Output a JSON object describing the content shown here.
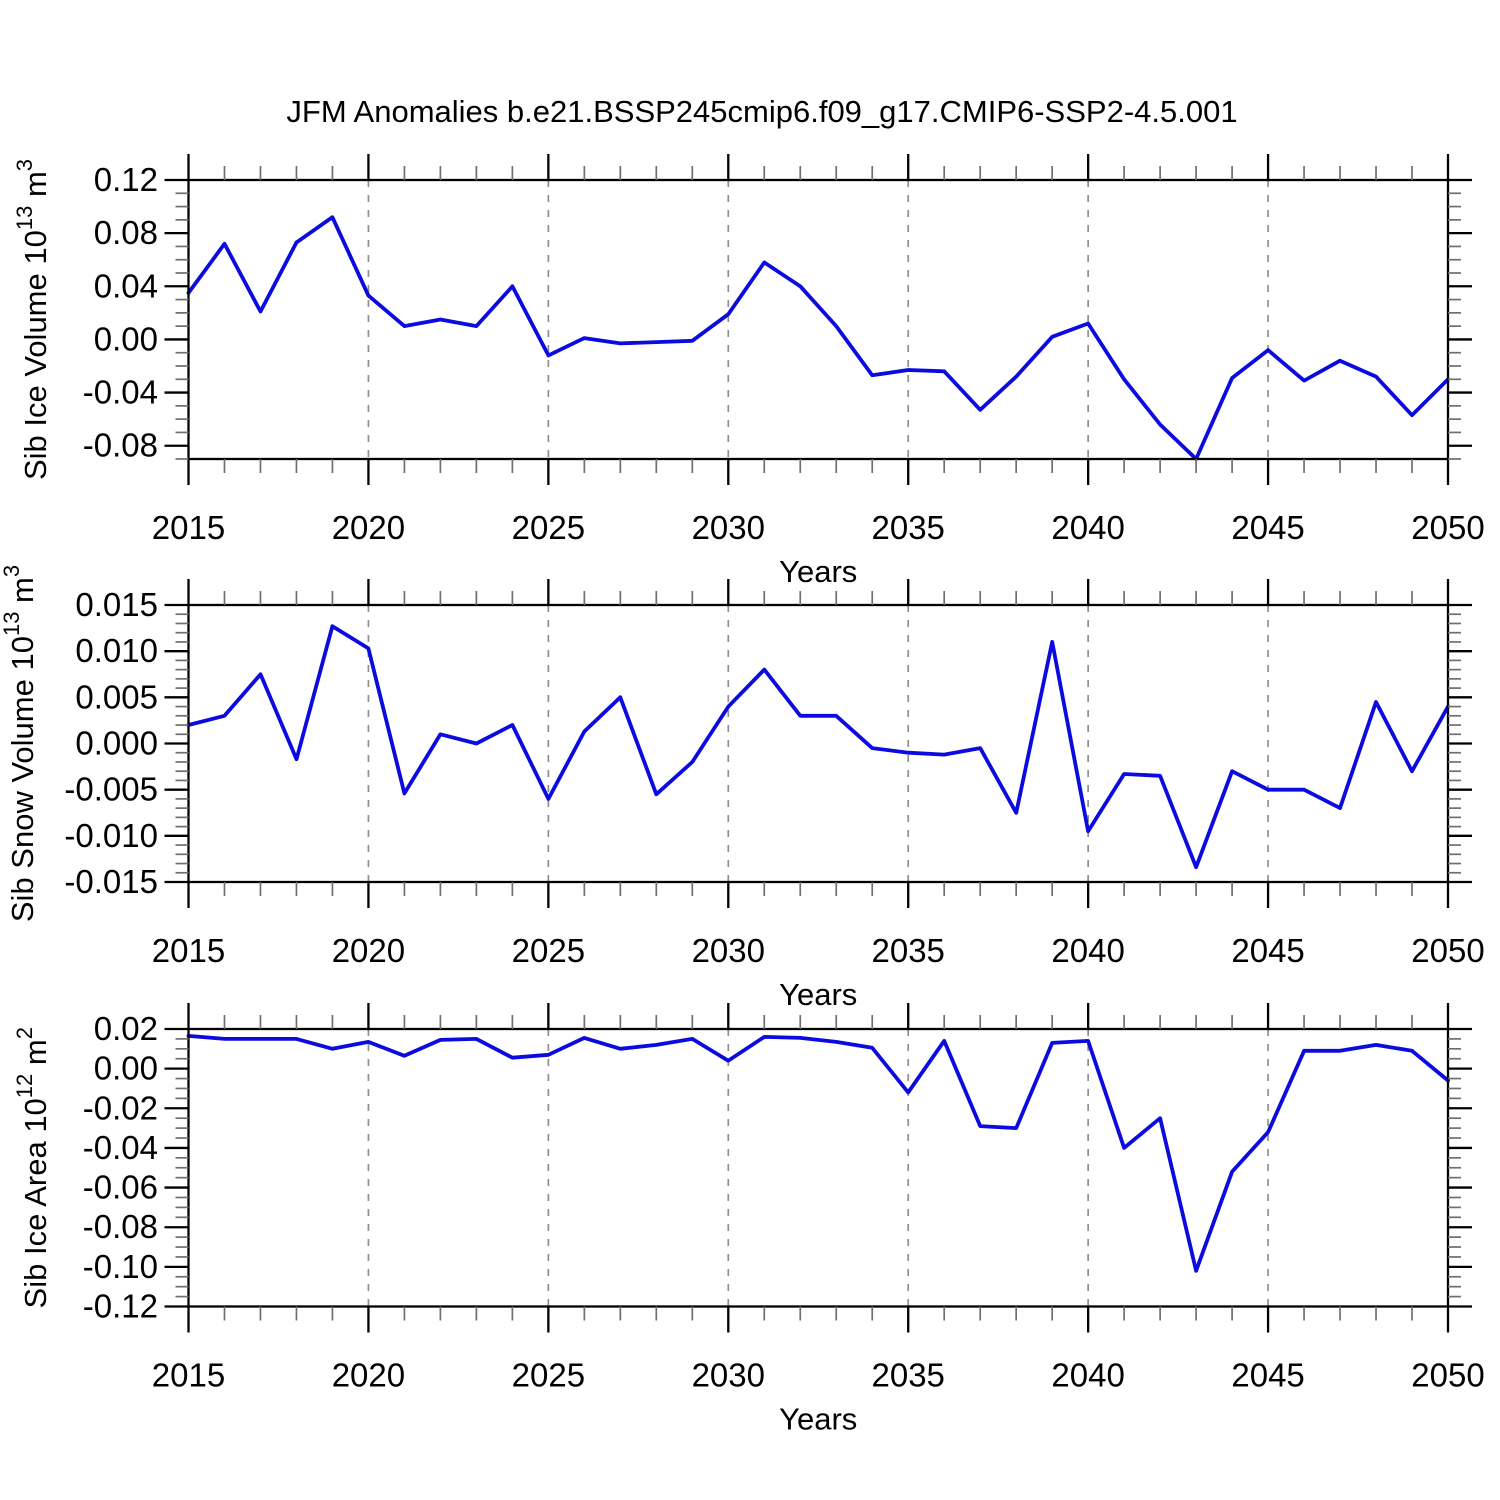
{
  "title": "JFM Anomalies b.e21.BSSP245cmip6.f09_g17.CMIP6-SSP2-4.5.001",
  "chart_data": {
    "type": "line",
    "x_label": "Years",
    "x": [
      2015,
      2016,
      2017,
      2018,
      2019,
      2020,
      2021,
      2022,
      2023,
      2024,
      2025,
      2026,
      2027,
      2028,
      2029,
      2030,
      2031,
      2032,
      2033,
      2034,
      2035,
      2036,
      2037,
      2038,
      2039,
      2040,
      2041,
      2042,
      2043,
      2044,
      2045,
      2046,
      2047,
      2048,
      2049,
      2050
    ],
    "x_major_ticks": [
      2015,
      2020,
      2025,
      2030,
      2035,
      2040,
      2045,
      2050
    ],
    "x_tick_labels": [
      "2015",
      "2020",
      "2025",
      "2030",
      "2035",
      "2040",
      "2045",
      "2050"
    ],
    "x_gridline_years": [
      2020,
      2025,
      2030,
      2035,
      2040,
      2045
    ],
    "grid_on": "vertical-dashed-only",
    "legend": "none",
    "line_color": "#0b0be0",
    "axis_color": "#000000",
    "minor_tick_color": "#6f6f6f",
    "gridline_color": "#8f8f8f",
    "panels": [
      {
        "name": "sib-ice-volume",
        "ylabel_text": "Sib Ice Volume 10^13 m^3",
        "ylabel_parts": [
          {
            "text": "Sib Ice Volume 10"
          },
          {
            "text": "13",
            "sup": true
          },
          {
            "text": " m"
          },
          {
            "text": "3",
            "sup": true
          }
        ],
        "ylim": [
          -0.09,
          0.12
        ],
        "ytick_values": [
          0.12,
          0.08,
          0.04,
          0.0,
          -0.04,
          -0.08
        ],
        "ytick_labels": [
          "0.12",
          "0.08",
          "0.04",
          "0.00",
          "-0.04",
          "-0.08"
        ],
        "y_minor_step": 0.01,
        "values": [
          0.035,
          0.072,
          0.021,
          0.073,
          0.092,
          0.033,
          0.01,
          0.015,
          0.01,
          0.04,
          -0.012,
          0.001,
          -0.003,
          -0.002,
          -0.001,
          0.019,
          0.058,
          0.04,
          0.01,
          -0.027,
          -0.023,
          -0.024,
          -0.053,
          -0.028,
          0.002,
          0.012,
          -0.03,
          -0.064,
          -0.09,
          -0.029,
          -0.008,
          -0.031,
          -0.016,
          -0.028,
          -0.057,
          -0.03
        ]
      },
      {
        "name": "sib-snow-volume",
        "ylabel_text": "Sib Snow Volume 10^13 m^3",
        "ylabel_parts": [
          {
            "text": "Sib Snow Volume 10"
          },
          {
            "text": "13",
            "sup": true
          },
          {
            "text": " m"
          },
          {
            "text": "3",
            "sup": true
          }
        ],
        "ylim": [
          -0.015,
          0.015
        ],
        "ytick_values": [
          0.015,
          0.01,
          0.005,
          0.0,
          -0.005,
          -0.01,
          -0.015
        ],
        "ytick_labels": [
          "0.015",
          "0.010",
          "0.005",
          "0.000",
          "-0.005",
          "-0.010",
          "-0.015"
        ],
        "y_minor_step": 0.001,
        "values": [
          0.002,
          0.003,
          0.0075,
          -0.0017,
          0.0127,
          0.0103,
          -0.0054,
          0.001,
          0.0,
          0.002,
          -0.006,
          0.0013,
          0.005,
          -0.0055,
          -0.002,
          0.004,
          0.008,
          0.003,
          0.003,
          -0.0005,
          -0.001,
          -0.0012,
          -0.0005,
          -0.0075,
          0.011,
          -0.0095,
          -0.0033,
          -0.0035,
          -0.0134,
          -0.003,
          -0.005,
          -0.005,
          -0.007,
          0.0045,
          -0.003,
          0.004
        ]
      },
      {
        "name": "sib-ice-area",
        "ylabel_text": "Sib Ice Area 10^12 m^2",
        "ylabel_parts": [
          {
            "text": "Sib Ice Area 10"
          },
          {
            "text": "12",
            "sup": true
          },
          {
            "text": " m"
          },
          {
            "text": "2",
            "sup": true
          }
        ],
        "ylim": [
          -0.12,
          0.02
        ],
        "ytick_values": [
          0.02,
          0.0,
          -0.02,
          -0.04,
          -0.06,
          -0.08,
          -0.1,
          -0.12
        ],
        "ytick_labels": [
          "0.02",
          "0.00",
          "-0.02",
          "-0.04",
          "-0.06",
          "-0.08",
          "-0.10",
          "-0.12"
        ],
        "y_minor_step": 0.005,
        "values": [
          0.0165,
          0.015,
          0.015,
          0.015,
          0.01,
          0.0135,
          0.0065,
          0.0145,
          0.015,
          0.0055,
          0.007,
          0.0155,
          0.01,
          0.012,
          0.015,
          0.004,
          0.016,
          0.0155,
          0.0135,
          0.0105,
          -0.012,
          0.014,
          -0.029,
          -0.03,
          0.013,
          0.014,
          -0.04,
          -0.025,
          -0.102,
          -0.052,
          -0.032,
          0.009,
          0.009,
          0.012,
          0.009,
          -0.006
        ]
      }
    ]
  }
}
